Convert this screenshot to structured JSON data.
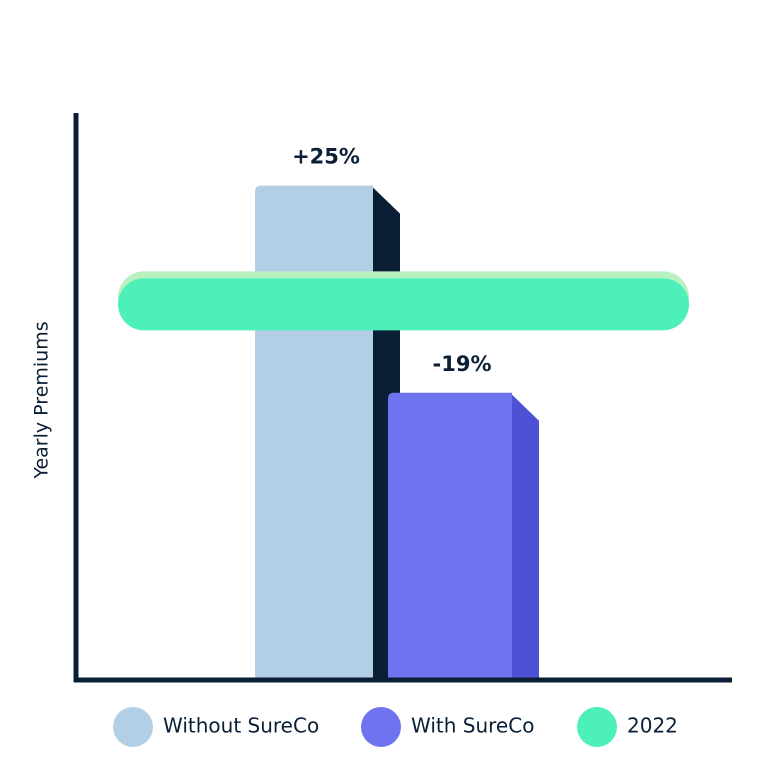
{
  "chart_data": {
    "type": "bar",
    "y_label": "Yearly Premiums",
    "categories": [
      null
    ],
    "series": [
      {
        "name": "Without SureCo",
        "color": "#b3cfe6",
        "shade": "#0a1f35",
        "values": [
          25
        ],
        "value_labels": [
          "+25%"
        ]
      },
      {
        "name": "With SureCo",
        "color": "#7073f0",
        "shade": "#4d52d4",
        "values": [
          -19
        ],
        "value_labels": [
          "-19%"
        ]
      }
    ],
    "reference": {
      "name": "2022",
      "color": "#4cf0b8",
      "value": 0
    },
    "ylim": [
      -80,
      40
    ]
  }
}
